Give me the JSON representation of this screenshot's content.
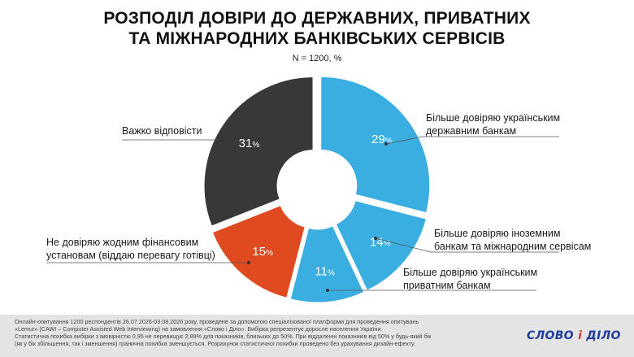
{
  "title_lines": [
    "РОЗПОДІЛ ДОВІРИ ДО ДЕРЖАВНИХ, ПРИВАТНИХ",
    "ТА МІЖНАРОДНИХ БАНКІВСЬКИХ СЕРВІСІВ"
  ],
  "subtitle": "N = 1200, %",
  "chart_data": {
    "type": "pie",
    "title": "РОЗПОДІЛ ДОВІРИ ДО ДЕРЖАВНИХ, ПРИВАТНИХ ТА МІЖНАРОДНИХ БАНКІВСЬКИХ СЕРВІСІВ",
    "donut": true,
    "unit": "%",
    "slices": [
      {
        "label": "Більше довіряю українським державним банкам",
        "label_lines": [
          "Більше довіряю українським",
          "державним банкам"
        ],
        "value": 29,
        "color": "#3aaee0"
      },
      {
        "label": "Більше довіряю іноземним банкам та міжнародним сервісам",
        "label_lines": [
          "Більше довіряю іноземним",
          "банкам та міжнародним сервісам"
        ],
        "value": 14,
        "color": "#3aaee0"
      },
      {
        "label": "Більше довіряю українським приватним банкам",
        "label_lines": [
          "Більше довіряю українським",
          "приватним банкам"
        ],
        "value": 11,
        "color": "#3aaee0"
      },
      {
        "label": "Не довіряю жодним фінансовим установам (віддаю перевагу готівці)",
        "label_lines": [
          "Не довіряю жодним фінансовим",
          "установам (віддаю перевагу готівці)"
        ],
        "value": 15,
        "color": "#e04a20"
      },
      {
        "label": "Важко відповісти",
        "label_lines": [
          "Важко відповісти"
        ],
        "value": 31,
        "color": "#383838"
      }
    ]
  },
  "footnote_lines": [
    "Онлайн-опитування 1200 респондентів 26.07.2026-03.08.2026 року, проведене за допомогою спеціалізованої платформи для проведення опитувань",
    "«Lemur» (CAWI – Computer Assisted Web Interviewing) на замовлення «Слово і Діло». Вибірка репрезентує доросле населення України.",
    "Статистична похибка вибірки з імовірністю 0,95 не перевищує 2,89% для показників, близьких до 50%. При віддаленні показників від 50% у будь-який бік",
    "(як у бік збільшення, так і зменшення) гранична похибка зменшується. Розрахунок статистичної похибки проведено без урахування дизайн-ефекту."
  ],
  "logo_text": [
    "СЛОВО",
    " і ",
    "ДІЛО"
  ]
}
